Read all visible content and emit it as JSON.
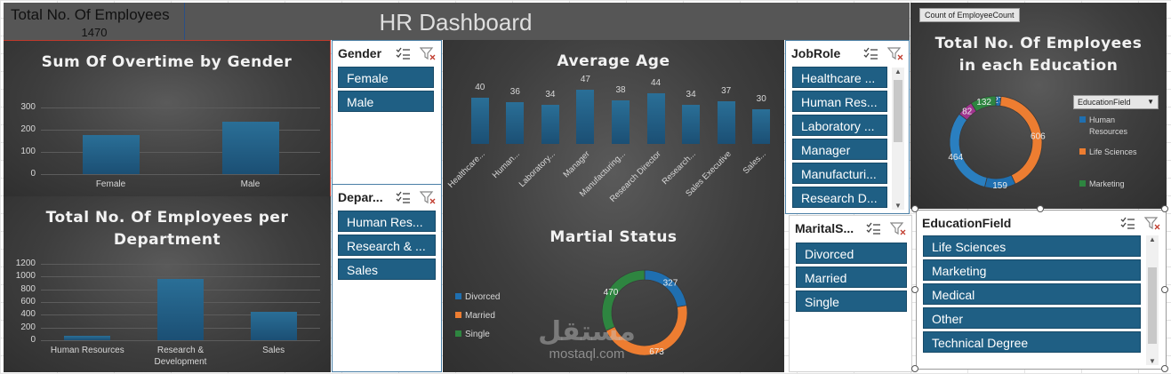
{
  "kpi": {
    "label": "Total No. Of Employees",
    "value": "1470"
  },
  "dashboard_title": "HR Dashboard",
  "gender_slicer": {
    "title": "Gender",
    "items": [
      "Female",
      "Male"
    ]
  },
  "department_slicer": {
    "title": "Depar...",
    "items": [
      "Human Res...",
      "Research & ...",
      "Sales"
    ]
  },
  "jobrole_slicer": {
    "title": "JobRole",
    "items": [
      "Healthcare ...",
      "Human Res...",
      "Laboratory ...",
      "Manager",
      "Manufacturi...",
      "Research D..."
    ]
  },
  "marital_slicer": {
    "title": "MaritalS...",
    "items": [
      "Divorced",
      "Married",
      "Single"
    ]
  },
  "education_slicer": {
    "title": "EducationField",
    "items": [
      "Life Sciences",
      "Marketing",
      "Medical",
      "Other",
      "Technical Degree"
    ]
  },
  "education_chart": {
    "field_button": "Count of EmployeeCount",
    "filter_button": "EducationField",
    "title_line1": "Total No. Of Employees",
    "title_line2": "in each Education"
  },
  "watermark": {
    "arabic": "مستقل",
    "latin": "mostaql.com"
  },
  "colors": {
    "bar": "#1f5f84",
    "orange": "#ed7d31",
    "green": "#2e8540",
    "purple": "#a1348f",
    "blue": "#1f6fb0"
  },
  "chart_data": [
    {
      "type": "bar",
      "title": "Sum Of Overtime by Gender",
      "categories": [
        "Female",
        "Male"
      ],
      "values": [
        176,
        236
      ],
      "yticks": [
        "0",
        "100",
        "200",
        "300"
      ],
      "ylim": [
        0,
        300
      ]
    },
    {
      "type": "bar",
      "title": "Total No. Of Employees per Department",
      "title_lines": [
        "Total No. Of Employees per",
        "Department"
      ],
      "categories": [
        "Human Resources",
        "Research & Development",
        "Sales"
      ],
      "category_lines": [
        [
          "Human Resources"
        ],
        [
          "Research &",
          "Development"
        ],
        [
          "Sales"
        ]
      ],
      "values": [
        63,
        961,
        446
      ],
      "yticks": [
        "0",
        "200",
        "400",
        "600",
        "800",
        "1000",
        "1200"
      ],
      "ylim": [
        0,
        1200
      ]
    },
    {
      "type": "bar",
      "title": "Average Age",
      "categories": [
        "Healthcare...",
        "Human...",
        "Laboratory...",
        "Manager",
        "Manufacturing...",
        "Research Director",
        "Research...",
        "Sales Executive",
        "Sales..."
      ],
      "values": [
        40,
        36,
        34,
        47,
        38,
        44,
        34,
        37,
        30
      ],
      "data_labels": [
        "40",
        "36",
        "34",
        "47",
        "38",
        "44",
        "34",
        "37",
        "30"
      ]
    },
    {
      "type": "pie",
      "title": "Martial Status",
      "legend": [
        "Divorced",
        "Married",
        "Single"
      ],
      "values": [
        327,
        673,
        470
      ],
      "data_labels": [
        "327",
        "673",
        "470"
      ],
      "colors": [
        "#1f6fb0",
        "#ed7d31",
        "#2e8540"
      ]
    },
    {
      "type": "pie",
      "title": "Total No. Of Employees in each Education",
      "legend": [
        "Human Resources",
        "Life Sciences",
        "Marketing"
      ],
      "legend_lines": [
        [
          "Human",
          "Resources"
        ],
        [
          "Life Sciences"
        ],
        [
          "Marketing"
        ]
      ],
      "values": [
        27,
        606,
        159,
        464,
        82,
        132
      ],
      "data_labels": [
        "27",
        "606",
        "159",
        "464",
        "82",
        "132"
      ],
      "colors": [
        "#1f6fb0",
        "#ed7d31",
        "#1f6fb0",
        "#2a7fc0",
        "#a1348f",
        "#2e8540"
      ]
    }
  ]
}
